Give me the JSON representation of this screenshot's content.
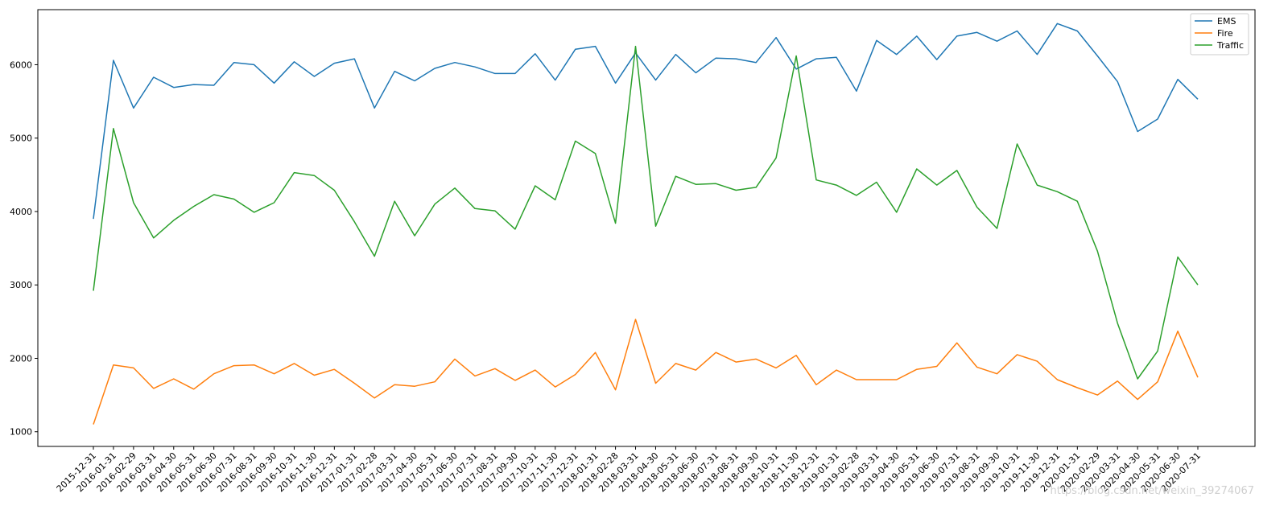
{
  "chart_data": {
    "type": "line",
    "title": "",
    "xlabel": "",
    "ylabel": "",
    "ylim": [
      800,
      6750
    ],
    "yticks": [
      1000,
      2000,
      3000,
      4000,
      5000,
      6000
    ],
    "grid": false,
    "legend_position": "top-right",
    "categories": [
      "2015-12-31",
      "2016-01-31",
      "2016-02-29",
      "2016-03-31",
      "2016-04-30",
      "2016-05-31",
      "2016-06-30",
      "2016-07-31",
      "2016-08-31",
      "2016-09-30",
      "2016-10-31",
      "2016-11-30",
      "2016-12-31",
      "2017-01-31",
      "2017-02-28",
      "2017-03-31",
      "2017-04-30",
      "2017-05-31",
      "2017-06-30",
      "2017-07-31",
      "2017-08-31",
      "2017-09-30",
      "2017-10-31",
      "2017-11-30",
      "2017-12-31",
      "2018-01-31",
      "2018-02-28",
      "2018-03-31",
      "2018-04-30",
      "2018-05-31",
      "2018-06-30",
      "2018-07-31",
      "2018-08-31",
      "2018-09-30",
      "2018-10-31",
      "2018-11-30",
      "2018-12-31",
      "2019-01-31",
      "2019-02-28",
      "2019-03-31",
      "2019-04-30",
      "2019-05-31",
      "2019-06-30",
      "2019-07-31",
      "2019-08-31",
      "2019-09-30",
      "2019-10-31",
      "2019-11-30",
      "2019-12-31",
      "2020-01-31",
      "2020-02-29",
      "2020-03-31",
      "2020-04-30",
      "2020-05-31",
      "2020-06-30",
      "2020-07-31"
    ],
    "series": [
      {
        "name": "EMS",
        "color": "#1f77b4",
        "values": [
          3900,
          6060,
          5410,
          5830,
          5690,
          5730,
          5720,
          6030,
          6000,
          5750,
          6040,
          5840,
          6020,
          6080,
          5410,
          5910,
          5780,
          5950,
          6030,
          5970,
          5880,
          5880,
          6150,
          5790,
          6210,
          6250,
          5750,
          6160,
          5790,
          6140,
          5890,
          6090,
          6080,
          6030,
          6370,
          5940,
          6080,
          6100,
          5640,
          6330,
          6140,
          6390,
          6070,
          6390,
          6440,
          6320,
          6460,
          6140,
          6560,
          6460,
          6120,
          5770,
          5090,
          5260,
          5800,
          5530
        ]
      },
      {
        "name": "Fire",
        "color": "#ff7f0e",
        "values": [
          1100,
          1910,
          1870,
          1590,
          1720,
          1580,
          1790,
          1900,
          1910,
          1790,
          1930,
          1770,
          1850,
          1660,
          1460,
          1640,
          1620,
          1680,
          1990,
          1760,
          1860,
          1700,
          1840,
          1610,
          1780,
          2080,
          1570,
          2530,
          1660,
          1930,
          1840,
          2080,
          1950,
          1990,
          1870,
          2040,
          1640,
          1840,
          1710,
          1710,
          1710,
          1850,
          1890,
          2210,
          1880,
          1790,
          2050,
          1960,
          1710,
          1600,
          1500,
          1690,
          1440,
          1680,
          2370,
          1740
        ]
      },
      {
        "name": "Traffic",
        "color": "#2ca02c",
        "values": [
          2920,
          5130,
          4120,
          3640,
          3880,
          4070,
          4230,
          4170,
          3990,
          4120,
          4530,
          4490,
          4290,
          3860,
          3390,
          4140,
          3670,
          4100,
          4320,
          4040,
          4010,
          3760,
          4350,
          4160,
          4960,
          4790,
          3840,
          6250,
          3800,
          4480,
          4370,
          4380,
          4290,
          4330,
          4730,
          6120,
          4430,
          4360,
          4220,
          4400,
          3990,
          4580,
          4360,
          4560,
          4060,
          3770,
          4920,
          4360,
          4270,
          4140,
          3460,
          2480,
          1720,
          2100,
          3380,
          3000
        ]
      }
    ]
  },
  "watermark": "https://blog.csdn.net/weixin_39274067"
}
